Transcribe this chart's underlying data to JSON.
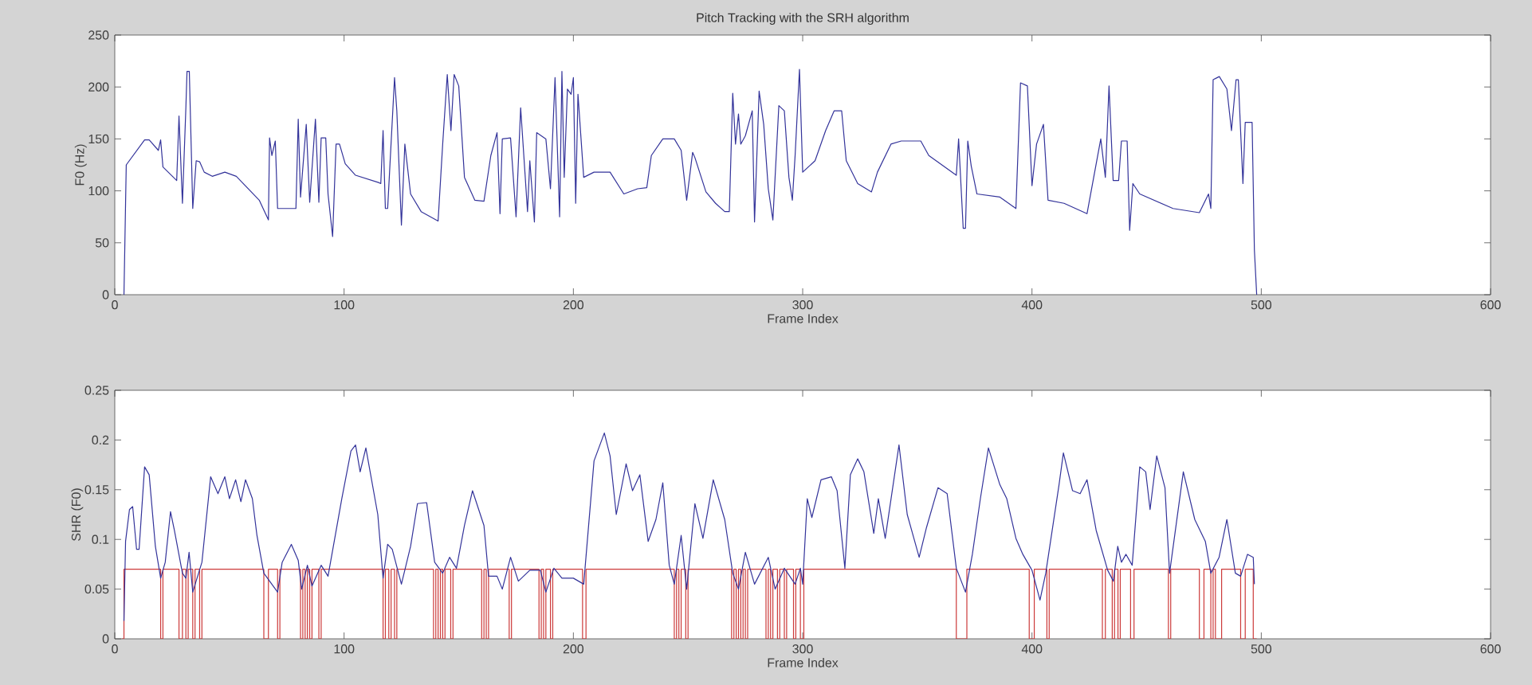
{
  "chart_data": [
    {
      "type": "line",
      "title": "Pitch Tracking with the SRH algorithm",
      "xlabel": "Frame Index",
      "ylabel": "F0 (Hz)",
      "xlim": [
        0,
        600
      ],
      "ylim": [
        0,
        250
      ],
      "xticks": [
        0,
        100,
        200,
        300,
        400,
        500,
        600
      ],
      "yticks": [
        0,
        50,
        100,
        150,
        200,
        250
      ],
      "color": "#33339a",
      "x": [
        4,
        5,
        13,
        15,
        19,
        20,
        21,
        27,
        28,
        29.5,
        31,
        31.5,
        32.5,
        33.3,
        34,
        35.5,
        37,
        39,
        42.5,
        48,
        53,
        63,
        67,
        67.5,
        68.5,
        70,
        71,
        79,
        80,
        81,
        83.5,
        85,
        87.5,
        89,
        90,
        92,
        93,
        95,
        96.5,
        98,
        100.5,
        105,
        115,
        116,
        117,
        118,
        119,
        122,
        123,
        125,
        126.5,
        129,
        133.6,
        141,
        143,
        145,
        146.6,
        148,
        150,
        152.5,
        157,
        161,
        164,
        166.7,
        168,
        169,
        172.6,
        175,
        177,
        180,
        181,
        183,
        184,
        188,
        190,
        192,
        194,
        195,
        196,
        197.4,
        199,
        200,
        201,
        202,
        204.5,
        209,
        216,
        222,
        228,
        232,
        234,
        239,
        244,
        247,
        249.4,
        252,
        253,
        257.8,
        262,
        266,
        268,
        269.5,
        270.7,
        272,
        273,
        275,
        278,
        279,
        281,
        283,
        285,
        287,
        289.6,
        292,
        294,
        295.5,
        296.7,
        298.6,
        300,
        305.4,
        310,
        313.7,
        317,
        319,
        324,
        330,
        332.6,
        338.5,
        343,
        351.5,
        355,
        367,
        368,
        370,
        371,
        372,
        373.5,
        376,
        386,
        393,
        395,
        398,
        400,
        402,
        405,
        407,
        414,
        424,
        430,
        432,
        433.6,
        435.4,
        437.8,
        439,
        441.5,
        442.6,
        444,
        447,
        461.5,
        473,
        477,
        478,
        479,
        481.7,
        485,
        487,
        489,
        490,
        492,
        493,
        496,
        497,
        498
      ],
      "values": [
        0,
        125,
        149,
        149,
        139,
        149,
        123,
        110,
        172,
        88,
        180,
        215,
        215,
        145,
        83,
        129,
        128,
        118,
        114,
        118,
        114,
        91,
        72,
        151,
        134,
        148,
        83,
        83,
        169,
        94,
        164,
        89,
        169,
        89,
        151,
        151,
        97,
        56,
        145,
        145,
        126,
        115,
        108,
        107,
        158,
        83,
        83,
        209,
        177,
        67,
        145,
        97,
        80,
        71,
        145,
        212,
        158,
        212,
        201,
        113,
        91,
        90,
        134,
        156,
        78,
        150,
        151,
        75,
        180,
        80,
        129,
        70,
        156,
        150,
        102,
        209,
        75,
        215,
        113,
        198,
        193,
        209,
        88,
        193,
        113,
        118,
        118,
        97,
        102,
        103,
        134,
        150,
        150,
        139,
        91,
        137,
        132,
        99,
        88,
        80,
        80,
        194,
        145,
        174,
        145,
        153,
        177,
        70,
        196,
        164,
        102,
        72,
        182,
        177,
        113,
        91,
        134,
        217,
        118,
        129,
        158,
        177,
        177,
        129,
        107,
        99,
        118,
        145,
        148,
        148,
        134,
        115,
        150,
        64,
        64,
        148,
        124,
        97,
        94,
        83,
        204,
        201,
        105,
        145,
        164,
        91,
        88,
        78,
        150,
        113,
        201,
        110,
        110,
        148,
        148,
        62,
        107,
        97,
        83,
        79,
        97,
        83,
        207,
        210,
        198,
        158,
        207,
        207,
        107,
        166,
        166,
        43,
        0
      ]
    },
    {
      "type": "line",
      "xlabel": "Frame Index",
      "ylabel": "SHR (F0)",
      "xlim": [
        0,
        600
      ],
      "ylim": [
        0,
        0.25
      ],
      "xticks": [
        0,
        100,
        200,
        300,
        400,
        500,
        600
      ],
      "yticks": [
        0,
        0.05,
        0.1,
        0.15,
        0.2,
        0.25
      ],
      "series": [
        {
          "color": "#33339a",
          "x": [
            4,
            4.7,
            6.4,
            7.8,
            9.5,
            10.6,
            13,
            15,
            17.7,
            20,
            22,
            24.3,
            26,
            29.5,
            31,
            32.4,
            34,
            38,
            41.8,
            45,
            48,
            50,
            52.7,
            55,
            57,
            60,
            62,
            65,
            71,
            73,
            77,
            80,
            81.5,
            84,
            86,
            90,
            93,
            99,
            103,
            105,
            107,
            109.5,
            114.7,
            117,
            119,
            121,
            125,
            129,
            132,
            136,
            139.5,
            143,
            146,
            149,
            152.5,
            156,
            161,
            163,
            166.7,
            169,
            172.6,
            176,
            181,
            185.6,
            188,
            191.5,
            195,
            200,
            204.5,
            209,
            213.5,
            216,
            218.7,
            223,
            225.8,
            229,
            232.6,
            236,
            239,
            241.8,
            244,
            247,
            249.4,
            253,
            256.5,
            261,
            266,
            269.5,
            272,
            275,
            279,
            285,
            288,
            292,
            296.7,
            299,
            300,
            302,
            304,
            308,
            312.5,
            315,
            318.4,
            320.8,
            324,
            326.7,
            331,
            333,
            336,
            342,
            345.6,
            348.5,
            350.8,
            354,
            359,
            363,
            367,
            371,
            374,
            377.5,
            381,
            386,
            389,
            393,
            396,
            400,
            403.5,
            406,
            411.8,
            413.7,
            417.7,
            421,
            424,
            428,
            433,
            435.5,
            437.4,
            439,
            441,
            443.7,
            447,
            449.6,
            451.5,
            454.4,
            458,
            460,
            466,
            471,
            475.6,
            478,
            481.6,
            485,
            488.7,
            491,
            494,
            496.5,
            497
          ],
          "values": [
            0.018,
            0.098,
            0.13,
            0.133,
            0.09,
            0.09,
            0.173,
            0.165,
            0.093,
            0.061,
            0.077,
            0.128,
            0.109,
            0.066,
            0.061,
            0.087,
            0.047,
            0.077,
            0.163,
            0.146,
            0.163,
            0.141,
            0.16,
            0.138,
            0.16,
            0.141,
            0.104,
            0.066,
            0.047,
            0.077,
            0.095,
            0.079,
            0.05,
            0.074,
            0.053,
            0.074,
            0.063,
            0.141,
            0.189,
            0.195,
            0.168,
            0.192,
            0.125,
            0.061,
            0.095,
            0.09,
            0.055,
            0.093,
            0.136,
            0.137,
            0.077,
            0.066,
            0.082,
            0.071,
            0.114,
            0.149,
            0.114,
            0.063,
            0.063,
            0.05,
            0.082,
            0.058,
            0.069,
            0.069,
            0.047,
            0.071,
            0.061,
            0.061,
            0.055,
            0.179,
            0.207,
            0.184,
            0.125,
            0.176,
            0.149,
            0.165,
            0.098,
            0.12,
            0.157,
            0.074,
            0.055,
            0.104,
            0.05,
            0.136,
            0.101,
            0.16,
            0.12,
            0.066,
            0.05,
            0.087,
            0.055,
            0.082,
            0.05,
            0.071,
            0.055,
            0.071,
            0.055,
            0.141,
            0.122,
            0.16,
            0.163,
            0.149,
            0.071,
            0.165,
            0.181,
            0.168,
            0.106,
            0.141,
            0.101,
            0.195,
            0.125,
            0.101,
            0.082,
            0.112,
            0.152,
            0.146,
            0.071,
            0.047,
            0.085,
            0.141,
            0.192,
            0.155,
            0.141,
            0.101,
            0.085,
            0.069,
            0.039,
            0.066,
            0.155,
            0.187,
            0.149,
            0.146,
            0.16,
            0.109,
            0.069,
            0.058,
            0.093,
            0.077,
            0.085,
            0.074,
            0.173,
            0.168,
            0.13,
            0.184,
            0.152,
            0.066,
            0.168,
            0.12,
            0.098,
            0.066,
            0.082,
            0.12,
            0.066,
            0.063,
            0.085,
            0.082,
            0.055
          ]
        },
        {
          "type": "step",
          "color": "#cc3a3a",
          "x": [
            3,
            4,
            20,
            21,
            28,
            29.5,
            31,
            32,
            34,
            35,
            37,
            38,
            65,
            67,
            71,
            72,
            81,
            82,
            83,
            84,
            85,
            86,
            89,
            90,
            117,
            118,
            119.5,
            120.5,
            122,
            123,
            139,
            140,
            141,
            142,
            143,
            144,
            146.5,
            147.5,
            160,
            161,
            162,
            163,
            172,
            173,
            185,
            186,
            187,
            188,
            190,
            191,
            204,
            205.5,
            244,
            245,
            246,
            247,
            249,
            250,
            269,
            270,
            271,
            272,
            273,
            274,
            275,
            276,
            284,
            285,
            286,
            287,
            289,
            290,
            292,
            293,
            296,
            297,
            299,
            300.5,
            367,
            371.6,
            398.8,
            401,
            406.5,
            407.5,
            430.7,
            432,
            435,
            436,
            437.5,
            438.5,
            443,
            444.5,
            459.5,
            460.5,
            473,
            475,
            478,
            479,
            480,
            482.7,
            491,
            493,
            496.5,
            498
          ],
          "values": [
            0,
            0.07,
            0,
            0.07,
            0,
            0.07,
            0,
            0.07,
            0,
            0.07,
            0,
            0.07,
            0,
            0.07,
            0,
            0.07,
            0,
            0.07,
            0,
            0.07,
            0,
            0.07,
            0,
            0.07,
            0,
            0.07,
            0,
            0.07,
            0,
            0.07,
            0,
            0.07,
            0,
            0.07,
            0,
            0.07,
            0,
            0.07,
            0,
            0.07,
            0,
            0.07,
            0,
            0.07,
            0,
            0.07,
            0,
            0.07,
            0,
            0.07,
            0,
            0.07,
            0,
            0.07,
            0,
            0.07,
            0,
            0.07,
            0,
            0.07,
            0,
            0.07,
            0,
            0.07,
            0,
            0.07,
            0,
            0.07,
            0,
            0.07,
            0,
            0.07,
            0,
            0.07,
            0,
            0.07,
            0,
            0.07,
            0,
            0.07,
            0,
            0.07,
            0,
            0.07,
            0,
            0.07,
            0,
            0.07,
            0,
            0.07,
            0,
            0.07,
            0,
            0.07,
            0,
            0.07,
            0,
            0.07,
            0,
            0.07,
            0,
            0.07,
            0,
            0
          ]
        }
      ]
    }
  ]
}
